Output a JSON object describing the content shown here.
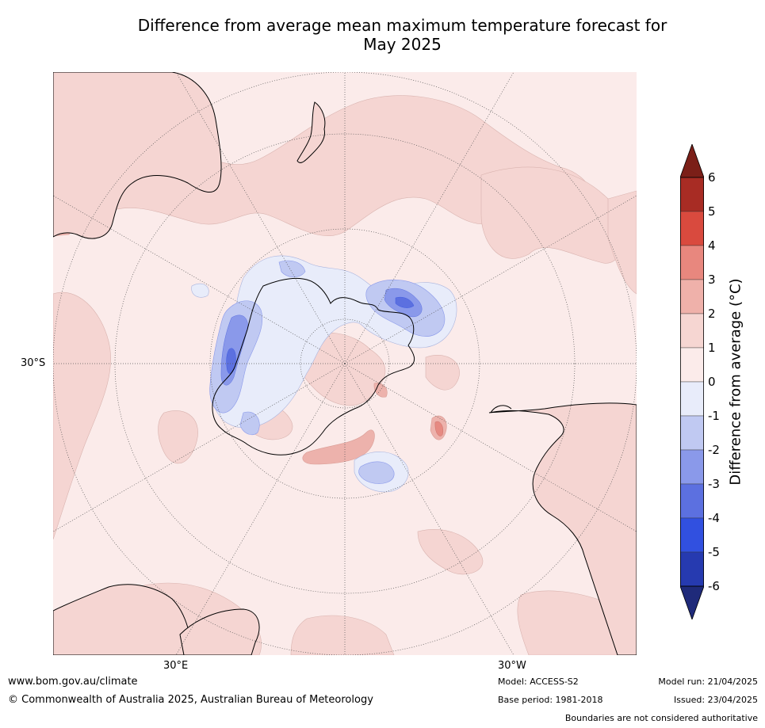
{
  "title_line1": "Difference from average mean maximum temperature forecast for",
  "title_line2": "May 2025",
  "map": {
    "projection": "south-polar-stereographic",
    "lat_label": "30°S",
    "lon_labels": [
      "30°E",
      "30°W"
    ],
    "colors": {
      "ocean_0_1": "#fbebea",
      "warm_1_2": "#f5d5d2",
      "warm_2_3": "#edb2ac",
      "warm_3_4": "#e68a82",
      "cool_0_1": "#e8ecfa",
      "cool_1_2": "#c0c9f2",
      "cool_2_3": "#8a99ea",
      "cool_3_4": "#5c70e0",
      "coast": "#000000",
      "grid": "#555555"
    }
  },
  "colorbar": {
    "title": "Difference from average (°C)",
    "ticks": [
      "6",
      "5",
      "4",
      "3",
      "2",
      "1",
      "0",
      "-1",
      "-2",
      "-3",
      "-4",
      "-5",
      "-6"
    ],
    "top_extend_color": "#7b1f18",
    "bottom_extend_color": "#1f2a7a",
    "bands": [
      "#a82c24",
      "#d94a3e",
      "#e8877e",
      "#efb1aa",
      "#f6d6d2",
      "#fbebea",
      "#e8ecfa",
      "#c0c9f2",
      "#8a99ea",
      "#5c70e0",
      "#3150e0",
      "#263ab0"
    ]
  },
  "footer": {
    "website": "www.bom.gov.au/climate",
    "copyright": "© Commonwealth of Australia 2025, Australian Bureau of Meteorology",
    "model": "Model: ACCESS-S2",
    "base_period": "Base period: 1981-2018",
    "model_run": "Model run: 21/04/2025",
    "issued": "Issued: 23/04/2025",
    "disclaimer": "Boundaries are not considered authoritative"
  }
}
